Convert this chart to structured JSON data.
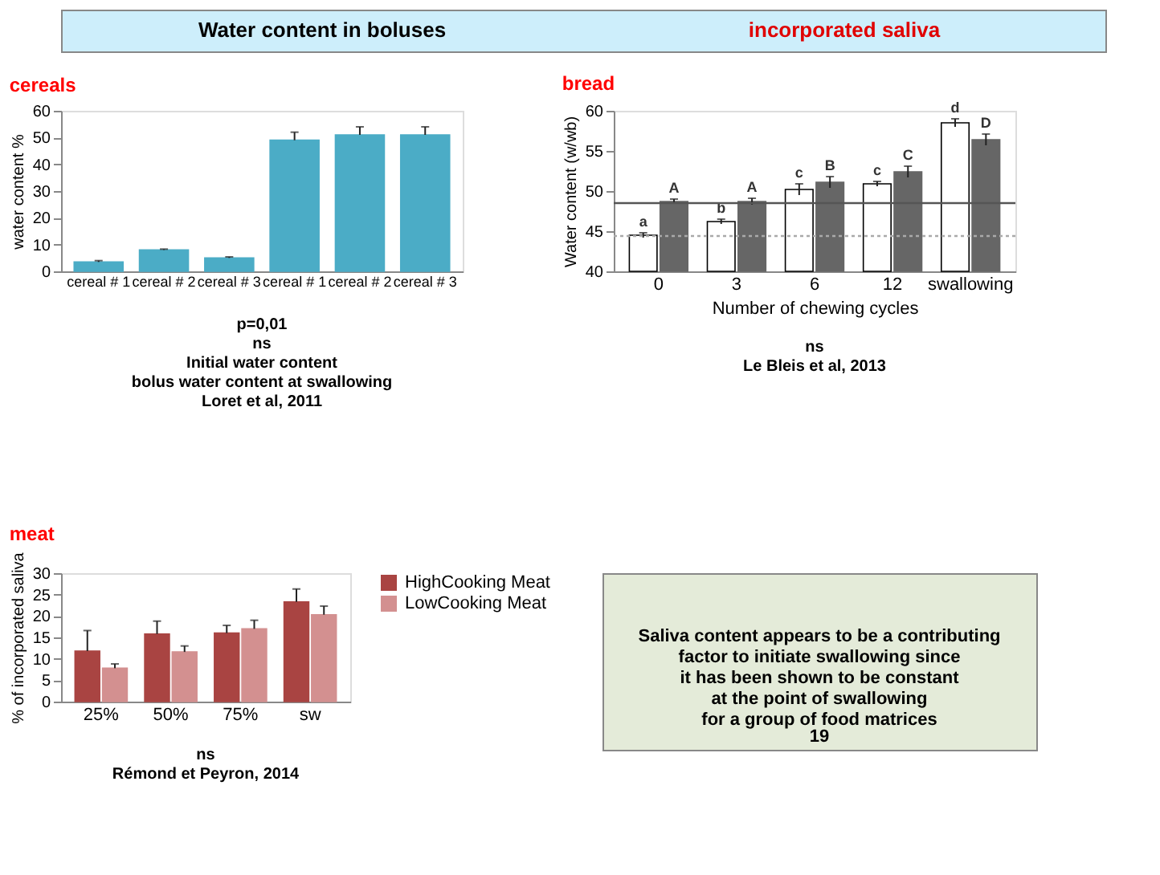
{
  "chart_data": [
    {
      "type": "other",
      "title": "Water content in boluses",
      "annotations": [
        "incorporated saliva"
      ]
    },
    {
      "type": "bar",
      "title": "cereals",
      "ylabel": "water content %",
      "categories": [
        "cereal # 1",
        "cereal # 2",
        "cereal # 3",
        "cereal # 1",
        "cereal # 2",
        "cereal # 3"
      ],
      "series": [
        {
          "color": "#4bacc6",
          "values": [
            3.5,
            8,
            5,
            49,
            51,
            51
          ],
          "errors": [
            [
              3.5,
              4
            ],
            [
              8,
              8.3
            ],
            [
              5,
              5.4
            ],
            [
              49,
              52
            ],
            [
              51,
              54
            ],
            [
              51,
              54
            ]
          ]
        }
      ],
      "ylim": [
        0,
        60
      ],
      "yticks": [
        0,
        10,
        20,
        30,
        40,
        50,
        60
      ],
      "annotations": [
        "p=0,01",
        "ns",
        "Initial water content",
        "bolus water content at swallowing",
        "Loret et al, 2011"
      ]
    },
    {
      "type": "bar",
      "title": "bread",
      "xlabel": "Number of chewing cycles",
      "ylabel": "Water content (w/wb)",
      "categories": [
        "0",
        "3",
        "6",
        "12",
        "swallowing"
      ],
      "series": [
        {
          "color": "#ffffff",
          "values": [
            44.5,
            46.2,
            50.2,
            50.9,
            58.5
          ],
          "errors": [
            0.3,
            0.3,
            0.7,
            0.3,
            0.5
          ],
          "value_labels": [
            "a",
            "b",
            "c",
            "c",
            "d"
          ]
        },
        {
          "color": "#666666",
          "values": [
            48.7,
            48.7,
            51.1,
            52.4,
            56.4
          ],
          "errors": [
            0.3,
            0.4,
            0.7,
            0.7,
            0.7
          ],
          "value_labels": [
            "A",
            "A",
            "B",
            "C",
            "D"
          ]
        }
      ],
      "ylim": [
        40,
        60
      ],
      "yticks": [
        40,
        45,
        50,
        55,
        60
      ],
      "ref_lines": [
        {
          "axis": "y",
          "value": 48.5,
          "color": "#555555",
          "line_style": "solid"
        },
        {
          "axis": "y",
          "value": 44.4,
          "color": "#aaaaaa",
          "line_style": "dotted"
        }
      ],
      "annotations": [
        "ns",
        "Le Bleis et al, 2013"
      ]
    },
    {
      "type": "bar",
      "title": "meat",
      "ylabel": "% of incorporated saliva",
      "categories": [
        "25%",
        "50%",
        "75%",
        "sw"
      ],
      "series": [
        {
          "name": "HighCooking Meat",
          "color": "#a94442",
          "values": [
            11.8,
            15.8,
            16,
            23.3
          ],
          "errors": [
            [
              11.8,
              16.6
            ],
            [
              15.8,
              18.8
            ],
            [
              16,
              17.8
            ],
            [
              23.3,
              26.3
            ]
          ]
        },
        {
          "name": "LowCooking Meat",
          "color": "#d39090",
          "values": [
            7.8,
            11.6,
            17,
            20.3
          ],
          "errors": [
            [
              7.8,
              8.8
            ],
            [
              11.6,
              13
            ],
            [
              17,
              19
            ],
            [
              20.3,
              22.3
            ]
          ]
        }
      ],
      "ylim": [
        0,
        30
      ],
      "yticks": [
        0,
        5,
        10,
        15,
        20,
        25,
        30
      ],
      "legend": "right",
      "annotations": [
        "ns",
        "Rémond et Peyron, 2014"
      ]
    },
    {
      "type": "other",
      "annotations": [
        "Saliva content appears to be a contributing\nfactor to initiate swallowing since\nit has been shown to be constant\nat the point of swallowing\nfor a group of food matrices",
        "19"
      ]
    }
  ]
}
